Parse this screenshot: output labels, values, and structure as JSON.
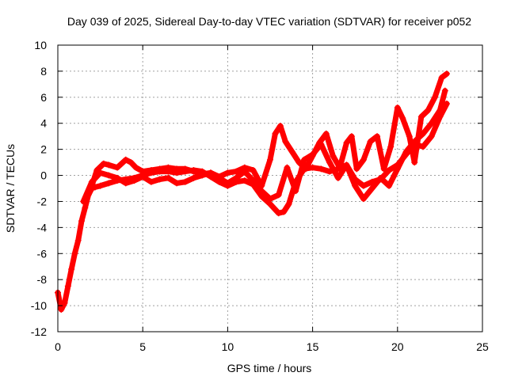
{
  "chart_data": {
    "type": "scatter",
    "title": "Day 039 of 2025, Sidereal Day-to-day VTEC variation (SDTVAR) for receiver p052",
    "xlabel": "GPS time / hours",
    "ylabel": "SDTVAR / TECUs",
    "xlim": [
      0,
      25
    ],
    "ylim": [
      -12,
      10
    ],
    "xticks": [
      "0",
      "5",
      "10",
      "15",
      "20",
      "25"
    ],
    "yticks": [
      "-12",
      "-10",
      "-8",
      "-6",
      "-4",
      "-2",
      "0",
      "2",
      "4",
      "6",
      "8",
      "10"
    ],
    "grid": true,
    "legend": "none",
    "marker": "+",
    "color": "#ff0000",
    "series": [
      {
        "x": [
          0,
          0.2,
          0.4,
          0.6,
          0.8,
          1.0,
          1.2,
          1.4,
          1.6,
          1.8,
          2.0,
          2.2,
          2.5,
          3.0,
          3.5,
          4.0,
          4.5,
          5.0,
          5.5,
          6.0,
          6.5,
          7.0,
          7.5,
          8.0,
          8.5,
          9.0,
          9.5,
          10.0,
          10.5,
          11.0,
          11.5,
          12.0,
          12.5,
          13.0,
          13.3,
          13.6,
          14.0,
          14.5,
          15.0,
          15.5,
          16.0,
          16.5,
          17.0,
          17.5,
          18.0,
          18.5,
          19.0,
          19.5,
          20.0,
          20.5,
          21.0,
          21.5,
          22.0,
          22.5,
          22.9
        ],
        "y": [
          -9.0,
          -10.3,
          -9.8,
          -8.5,
          -7.2,
          -6.0,
          -5.0,
          -3.5,
          -2.5,
          -1.5,
          -1.0,
          -0.9,
          -0.8,
          -0.6,
          -0.4,
          -0.3,
          -0.2,
          0.0,
          0.2,
          0.3,
          0.3,
          0.2,
          0.3,
          0.4,
          0.3,
          -0.1,
          -0.5,
          -0.8,
          -0.5,
          -0.4,
          -0.7,
          -1.6,
          -2.2,
          -2.9,
          -2.8,
          -2.2,
          -0.5,
          0.5,
          0.6,
          0.5,
          0.3,
          0.5,
          0.8,
          -0.3,
          -0.8,
          -0.5,
          -0.3,
          0.4,
          0.8,
          1.6,
          2.4,
          2.2,
          3.0,
          4.5,
          5.5
        ]
      },
      {
        "x": [
          2.0,
          2.3,
          2.7,
          3.0,
          3.5,
          4.0,
          4.3,
          4.6,
          5.0,
          5.5,
          6.0,
          6.5,
          7.0,
          7.5,
          8.0,
          8.5,
          9.0,
          9.5,
          10.0,
          10.5,
          11.0,
          11.5,
          12.0,
          12.5,
          12.8,
          13.1,
          13.4,
          13.8,
          14.2,
          14.6,
          15.0,
          15.4,
          15.8,
          16.2,
          16.6,
          17.0,
          17.3,
          17.6,
          18.0,
          18.4,
          18.8,
          19.2,
          19.6,
          20.0,
          20.3,
          20.7,
          21.0,
          21.4,
          21.8,
          22.2,
          22.6,
          22.9
        ],
        "y": [
          -0.8,
          0.4,
          0.9,
          0.8,
          0.6,
          1.2,
          1.0,
          0.6,
          0.3,
          0.4,
          0.5,
          0.6,
          0.5,
          0.5,
          0.3,
          0.1,
          0.2,
          -0.1,
          0.2,
          0.3,
          0.6,
          0.4,
          -0.8,
          1.2,
          3.2,
          3.8,
          2.6,
          1.8,
          1.0,
          0.5,
          1.5,
          2.5,
          3.2,
          1.5,
          0.6,
          2.5,
          3.0,
          0.5,
          1.2,
          2.6,
          3.0,
          0.5,
          2.2,
          5.2,
          4.4,
          3.0,
          1.0,
          4.5,
          5.0,
          6.0,
          7.5,
          7.8
        ]
      },
      {
        "x": [
          1.5,
          2.0,
          2.5,
          3.0,
          3.5,
          4.0,
          4.5,
          5.0,
          5.5,
          6.0,
          6.5,
          7.0,
          7.5,
          8.0,
          8.5,
          9.0,
          9.5,
          10.0,
          10.5,
          11.0,
          11.5,
          12.0,
          12.5,
          13.0,
          13.5,
          14.0,
          14.5,
          15.0,
          15.5,
          16.0,
          16.5,
          17.0,
          17.5,
          18.0,
          18.5,
          19.0,
          19.5,
          20.0,
          20.5,
          21.0,
          21.5,
          22.0,
          22.5,
          22.8
        ],
        "y": [
          -2.0,
          -0.5,
          0.2,
          0.0,
          -0.2,
          -0.6,
          -0.4,
          -0.1,
          -0.5,
          -0.3,
          -0.2,
          -0.6,
          -0.5,
          -0.2,
          0.0,
          0.2,
          -0.2,
          -0.6,
          -0.2,
          0.3,
          -0.4,
          -1.2,
          -1.8,
          -1.5,
          0.6,
          -1.2,
          1.2,
          1.6,
          2.4,
          1.0,
          -0.2,
          0.8,
          -0.8,
          -1.8,
          -1.0,
          -0.2,
          -0.8,
          0.5,
          1.8,
          2.6,
          3.2,
          4.0,
          5.0,
          6.5
        ]
      }
    ]
  }
}
